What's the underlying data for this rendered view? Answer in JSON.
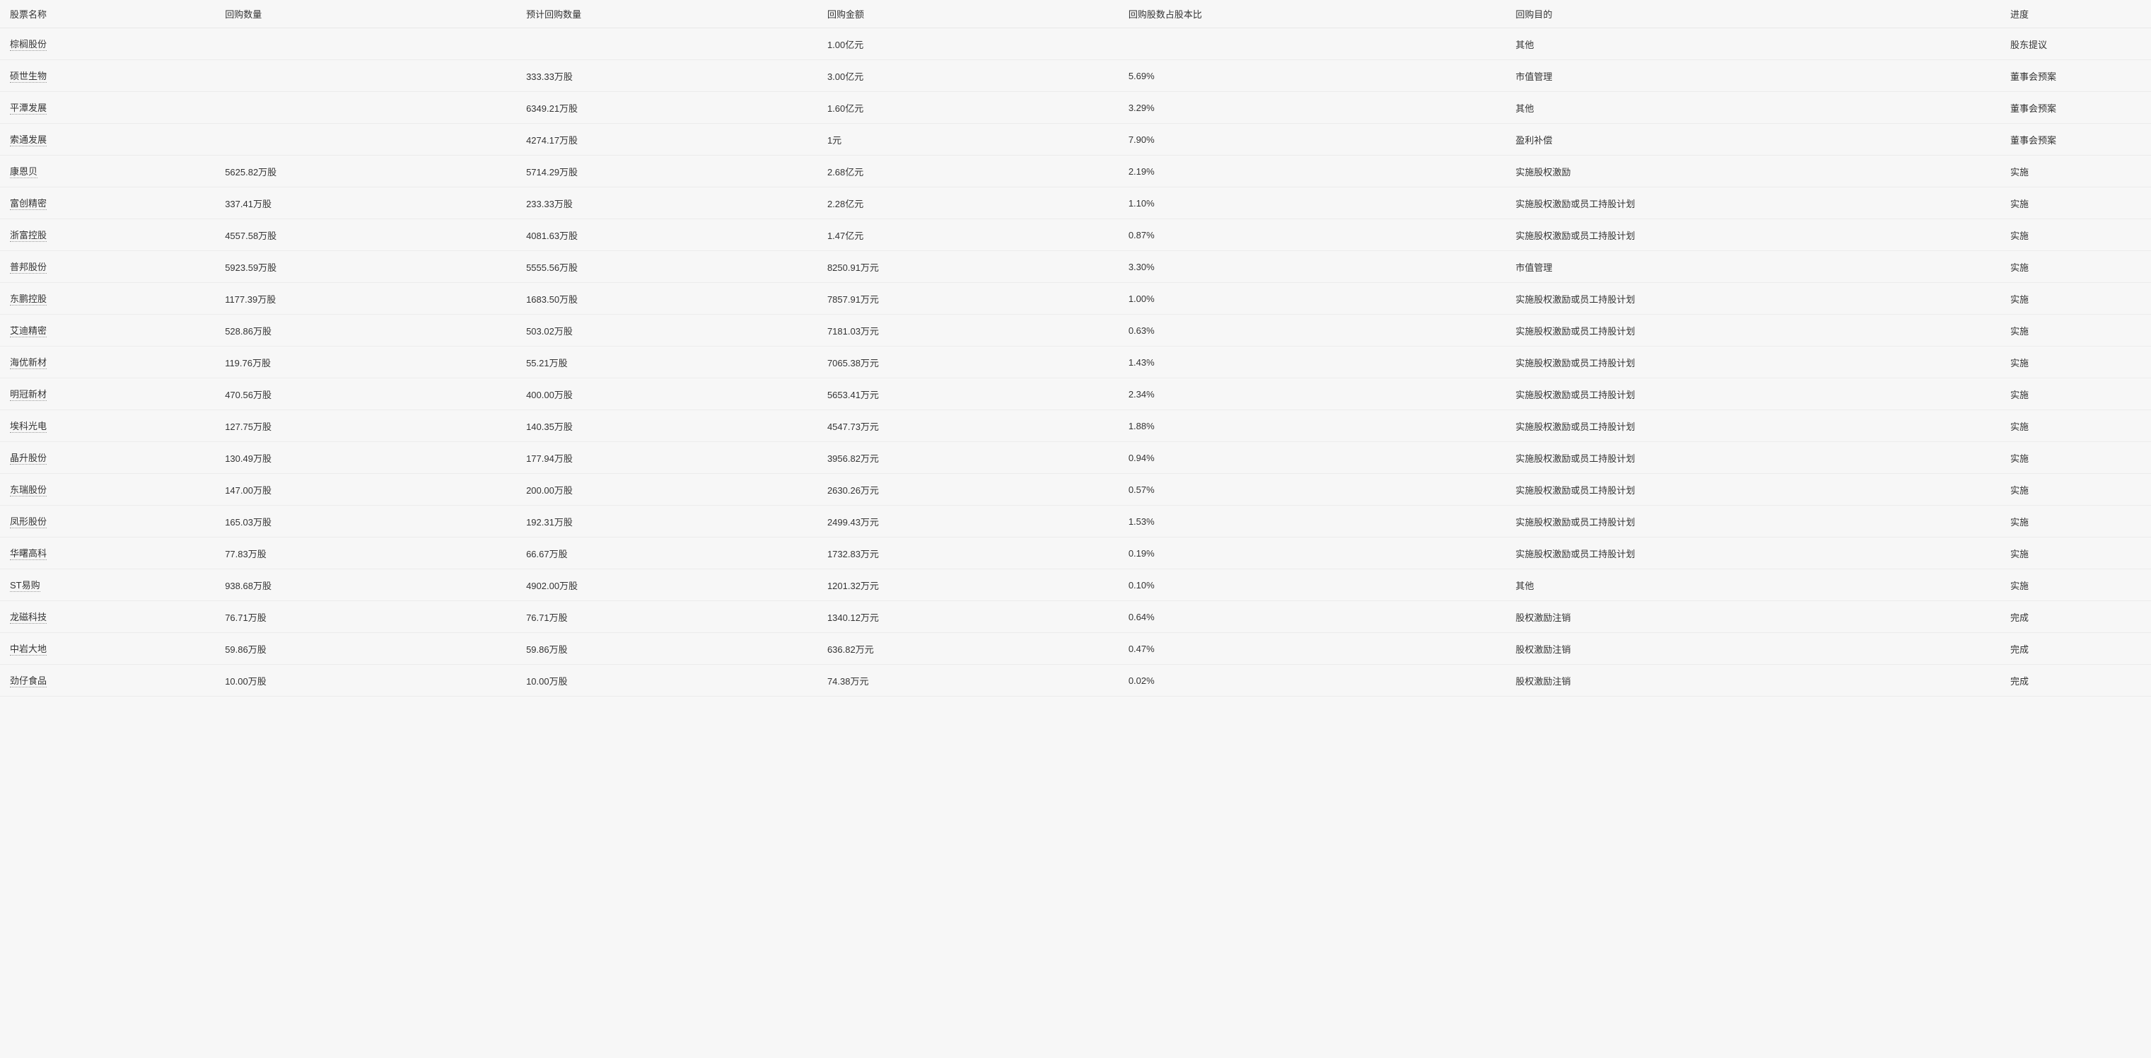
{
  "table": {
    "columns": [
      {
        "key": "name",
        "label": "股票名称",
        "class": "col-name"
      },
      {
        "key": "qty",
        "label": "回购数量",
        "class": "col-qty"
      },
      {
        "key": "est_qty",
        "label": "预计回购数量",
        "class": "col-est-qty"
      },
      {
        "key": "amount",
        "label": "回购金额",
        "class": "col-amount"
      },
      {
        "key": "ratio",
        "label": "回购股数占股本比",
        "class": "col-ratio"
      },
      {
        "key": "purpose",
        "label": "回购目的",
        "class": "col-purpose"
      },
      {
        "key": "progress",
        "label": "进度",
        "class": "col-progress"
      }
    ],
    "rows": [
      {
        "name": "棕榈股份",
        "qty": "",
        "est_qty": "",
        "amount": "1.00亿元",
        "ratio": "",
        "purpose": "其他",
        "progress": "股东提议"
      },
      {
        "name": "硕世生物",
        "qty": "",
        "est_qty": "333.33万股",
        "amount": "3.00亿元",
        "ratio": "5.69%",
        "purpose": "市值管理",
        "progress": "董事会预案"
      },
      {
        "name": "平潭发展",
        "qty": "",
        "est_qty": "6349.21万股",
        "amount": "1.60亿元",
        "ratio": "3.29%",
        "purpose": "其他",
        "progress": "董事会预案"
      },
      {
        "name": "索通发展",
        "qty": "",
        "est_qty": "4274.17万股",
        "amount": "1元",
        "ratio": "7.90%",
        "purpose": "盈利补偿",
        "progress": "董事会预案"
      },
      {
        "name": "康恩贝",
        "qty": "5625.82万股",
        "est_qty": "5714.29万股",
        "amount": "2.68亿元",
        "ratio": "2.19%",
        "purpose": "实施股权激励",
        "progress": "实施"
      },
      {
        "name": "富创精密",
        "qty": "337.41万股",
        "est_qty": "233.33万股",
        "amount": "2.28亿元",
        "ratio": "1.10%",
        "purpose": "实施股权激励或员工持股计划",
        "progress": "实施"
      },
      {
        "name": "浙富控股",
        "qty": "4557.58万股",
        "est_qty": "4081.63万股",
        "amount": "1.47亿元",
        "ratio": "0.87%",
        "purpose": "实施股权激励或员工持股计划",
        "progress": "实施"
      },
      {
        "name": "普邦股份",
        "qty": "5923.59万股",
        "est_qty": "5555.56万股",
        "amount": "8250.91万元",
        "ratio": "3.30%",
        "purpose": "市值管理",
        "progress": "实施"
      },
      {
        "name": "东鹏控股",
        "qty": "1177.39万股",
        "est_qty": "1683.50万股",
        "amount": "7857.91万元",
        "ratio": "1.00%",
        "purpose": "实施股权激励或员工持股计划",
        "progress": "实施"
      },
      {
        "name": "艾迪精密",
        "qty": "528.86万股",
        "est_qty": "503.02万股",
        "amount": "7181.03万元",
        "ratio": "0.63%",
        "purpose": "实施股权激励或员工持股计划",
        "progress": "实施"
      },
      {
        "name": "海优新材",
        "qty": "119.76万股",
        "est_qty": "55.21万股",
        "amount": "7065.38万元",
        "ratio": "1.43%",
        "purpose": "实施股权激励或员工持股计划",
        "progress": "实施"
      },
      {
        "name": "明冠新材",
        "qty": "470.56万股",
        "est_qty": "400.00万股",
        "amount": "5653.41万元",
        "ratio": "2.34%",
        "purpose": "实施股权激励或员工持股计划",
        "progress": "实施"
      },
      {
        "name": "埃科光电",
        "qty": "127.75万股",
        "est_qty": "140.35万股",
        "amount": "4547.73万元",
        "ratio": "1.88%",
        "purpose": "实施股权激励或员工持股计划",
        "progress": "实施"
      },
      {
        "name": "晶升股份",
        "qty": "130.49万股",
        "est_qty": "177.94万股",
        "amount": "3956.82万元",
        "ratio": "0.94%",
        "purpose": "实施股权激励或员工持股计划",
        "progress": "实施"
      },
      {
        "name": "东瑞股份",
        "qty": "147.00万股",
        "est_qty": "200.00万股",
        "amount": "2630.26万元",
        "ratio": "0.57%",
        "purpose": "实施股权激励或员工持股计划",
        "progress": "实施"
      },
      {
        "name": "凤形股份",
        "qty": "165.03万股",
        "est_qty": "192.31万股",
        "amount": "2499.43万元",
        "ratio": "1.53%",
        "purpose": "实施股权激励或员工持股计划",
        "progress": "实施"
      },
      {
        "name": "华曙高科",
        "qty": "77.83万股",
        "est_qty": "66.67万股",
        "amount": "1732.83万元",
        "ratio": "0.19%",
        "purpose": "实施股权激励或员工持股计划",
        "progress": "实施"
      },
      {
        "name": "ST易购",
        "qty": "938.68万股",
        "est_qty": "4902.00万股",
        "amount": "1201.32万元",
        "ratio": "0.10%",
        "purpose": "其他",
        "progress": "实施"
      },
      {
        "name": "龙磁科技",
        "qty": "76.71万股",
        "est_qty": "76.71万股",
        "amount": "1340.12万元",
        "ratio": "0.64%",
        "purpose": "股权激励注销",
        "progress": "完成"
      },
      {
        "name": "中岩大地",
        "qty": "59.86万股",
        "est_qty": "59.86万股",
        "amount": "636.82万元",
        "ratio": "0.47%",
        "purpose": "股权激励注销",
        "progress": "完成"
      },
      {
        "name": "劲仔食品",
        "qty": "10.00万股",
        "est_qty": "10.00万股",
        "amount": "74.38万元",
        "ratio": "0.02%",
        "purpose": "股权激励注销",
        "progress": "完成"
      }
    ]
  },
  "colors": {
    "background": "#f7f7f7",
    "text": "#333333",
    "border": "#ececec",
    "dotted_underline": "#999999"
  }
}
